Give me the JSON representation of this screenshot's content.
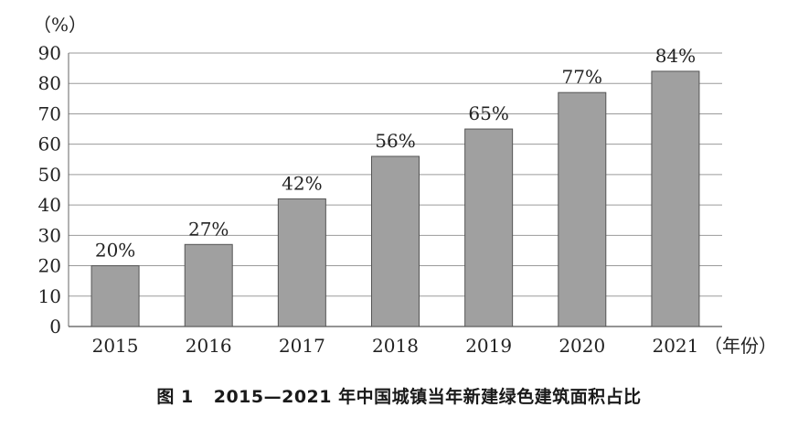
{
  "chart_data": {
    "type": "bar",
    "categories": [
      "2015",
      "2016",
      "2017",
      "2018",
      "2019",
      "2020",
      "2021"
    ],
    "values": [
      20,
      27,
      42,
      56,
      65,
      77,
      84
    ],
    "data_labels": [
      "20%",
      "27%",
      "42%",
      "56%",
      "65%",
      "77%",
      "84%"
    ],
    "ylabel": "（%）",
    "xlabel": "（年份）",
    "ylim": [
      0,
      90
    ],
    "yticks": [
      "0",
      "10",
      "20",
      "30",
      "40",
      "50",
      "60",
      "70",
      "80",
      "90"
    ],
    "grid": true,
    "bar_color": "#a0a0a0",
    "bar_stroke": "#555555",
    "grid_color": "#9a9a9a"
  },
  "caption": {
    "figure_number": "图 1",
    "title": "2015—2021 年中国城镇当年新建绿色建筑面积占比"
  }
}
